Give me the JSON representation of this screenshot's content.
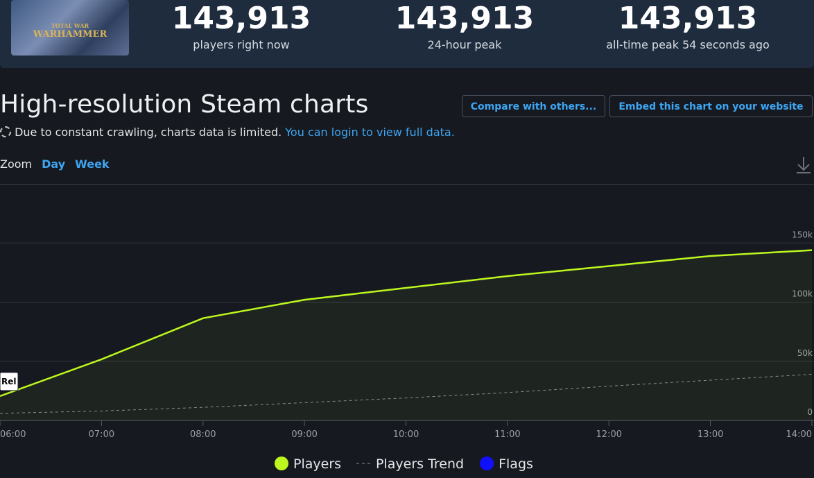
{
  "header": {
    "logo": [
      "TOTAL WAR",
      "WARHAMMER"
    ],
    "stats": [
      {
        "value": "143,913",
        "label": "players right now"
      },
      {
        "value": "143,913",
        "label": "24-hour peak"
      },
      {
        "value": "143,913",
        "label": "all-time peak 54 seconds ago"
      }
    ]
  },
  "heading": "High-resolution Steam charts",
  "buttons": [
    "Compare with others...",
    "Embed this chart on your website"
  ],
  "notice": {
    "text": "Due to constant crawling, charts data is limited.",
    "link": "You can login to view full data."
  },
  "zoom": {
    "label": "Zoom",
    "options": [
      "Day",
      "Week"
    ]
  },
  "chart_data": {
    "type": "line",
    "categories": [
      "06:00",
      "07:00",
      "08:00",
      "09:00",
      "10:00",
      "11:00",
      "12:00",
      "13:00",
      "14:00"
    ],
    "series": [
      {
        "name": "Players",
        "color": "#bdf71f",
        "values": [
          20600,
          51700,
          86400,
          102000,
          112000,
          122000,
          130500,
          139000,
          143913
        ]
      },
      {
        "name": "Players Trend",
        "color": "#8a8d93",
        "dashed": true,
        "values": [
          6000,
          8000,
          11000,
          15000,
          19000,
          23500,
          29000,
          34000,
          39000
        ]
      }
    ],
    "legend_extra": [
      {
        "name": "Flags",
        "color": "#1010ff"
      }
    ],
    "flag_label": "Rel",
    "ylim": [
      0,
      200000
    ],
    "yticks": [
      0,
      {
        "value": 50000,
        "label": "50k"
      },
      {
        "value": 100000,
        "label": "100k"
      },
      {
        "value": 150000,
        "label": "150k"
      }
    ],
    "grid": true
  }
}
